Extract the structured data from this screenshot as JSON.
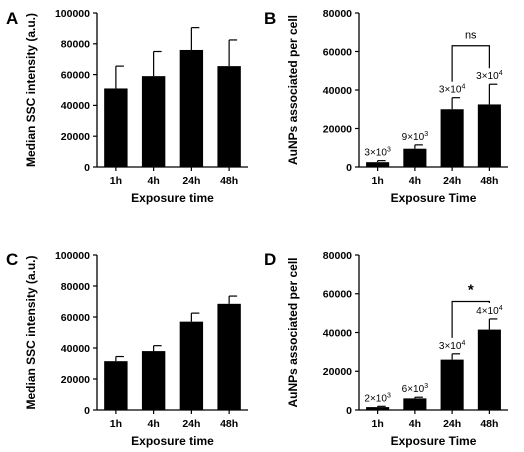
{
  "chart_data": [
    {
      "panel": "A",
      "type": "bar",
      "categories": [
        "1h",
        "4h",
        "24h",
        "48h"
      ],
      "values": [
        51000,
        59000,
        76000,
        65500
      ],
      "errors": [
        14500,
        16000,
        14500,
        17000
      ],
      "xlabel": "Exposure time",
      "ylabel": "Median SSC intensity (a.u.)",
      "ylim": [
        0,
        100000
      ],
      "yticks": [
        "0",
        "20000",
        "40000",
        "60000",
        "80000",
        "100000"
      ],
      "bar_labels": [],
      "significance": null,
      "color": "#000000"
    },
    {
      "panel": "B",
      "type": "bar",
      "categories": [
        "1h",
        "4h",
        "24h",
        "48h"
      ],
      "values": [
        2500,
        9500,
        30000,
        32500
      ],
      "errors": [
        800,
        2000,
        6000,
        10500
      ],
      "xlabel": "Exposure Time",
      "ylabel": "AuNPs associated per cell",
      "ylim": [
        0,
        80000
      ],
      "yticks": [
        "0",
        "20000",
        "40000",
        "60000",
        "80000"
      ],
      "bar_labels": [
        {
          "base": "3×10",
          "exp": "3"
        },
        {
          "base": "9×10",
          "exp": "3"
        },
        {
          "base": "3×10",
          "exp": "4"
        },
        {
          "base": "3×10",
          "exp": "4"
        }
      ],
      "significance": {
        "from": 2,
        "to": 3,
        "label": "ns",
        "y": 63000
      },
      "color": "#000000"
    },
    {
      "panel": "C",
      "type": "bar",
      "categories": [
        "1h",
        "4h",
        "24h",
        "48h"
      ],
      "values": [
        31500,
        38000,
        57000,
        68500
      ],
      "errors": [
        3000,
        3500,
        5500,
        5000
      ],
      "xlabel": "Exposure time",
      "ylabel": "Median SSC intensity (a.u.)",
      "ylim": [
        0,
        100000
      ],
      "yticks": [
        "0",
        "20000",
        "40000",
        "60000",
        "80000",
        "100000"
      ],
      "bar_labels": [],
      "significance": null,
      "color": "#000000"
    },
    {
      "panel": "D",
      "type": "bar",
      "categories": [
        "1h",
        "4h",
        "24h",
        "48h"
      ],
      "values": [
        1500,
        6000,
        26000,
        41500
      ],
      "errors": [
        400,
        600,
        3000,
        5500
      ],
      "xlabel": "Exposure Time",
      "ylabel": "AuNPs associated per cell",
      "ylim": [
        0,
        80000
      ],
      "yticks": [
        "0",
        "20000",
        "40000",
        "60000",
        "80000"
      ],
      "bar_labels": [
        {
          "base": "2×10",
          "exp": "3"
        },
        {
          "base": "6×10",
          "exp": "3"
        },
        {
          "base": "3×10",
          "exp": "4"
        },
        {
          "base": "4×10",
          "exp": "4"
        }
      ],
      "significance": {
        "from": 2,
        "to": 3,
        "label": "*",
        "y": 56000
      },
      "color": "#000000"
    }
  ]
}
